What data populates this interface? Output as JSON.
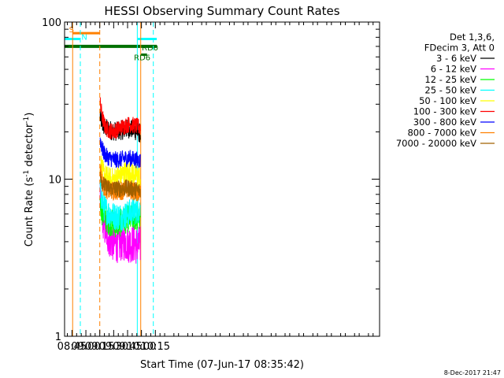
{
  "chart_data": {
    "type": "line",
    "title": "HESSI Observing Summary Count Rates",
    "xlabel": "Start Time (07-Jun-17 08:35:42)",
    "ylabel_main": "Count Rate (s",
    "ylabel_sup1": "-1",
    "ylabel_mid": " detector",
    "ylabel_sup2": "-1",
    "ylabel_end": ")",
    "x_range_min": [
      517,
      857
    ],
    "y_scale": "log",
    "ylim": [
      1,
      100
    ],
    "x_ticks": [
      {
        "min": 525,
        "label": "08:45"
      },
      {
        "min": 540,
        "label": "09:00"
      },
      {
        "min": 555,
        "label": "09:15"
      },
      {
        "min": 570,
        "label": "09:30"
      },
      {
        "min": 585,
        "label": "09:45"
      },
      {
        "min": 600,
        "label": "10:00"
      },
      {
        "min": 615,
        "label": "10:15"
      }
    ],
    "y_ticks": [
      {
        "value": 1,
        "label": "1"
      },
      {
        "value": 10,
        "label": "10"
      },
      {
        "value": 100,
        "label": "100"
      }
    ],
    "legend_header": [
      "Det 1,3,6,",
      "FDecim 3, Att 0"
    ],
    "data_start_min": 555.4,
    "data_end_min": 598.8,
    "series": [
      {
        "name": "3 - 6 keV",
        "color": "#000000",
        "values": [
          25,
          22.5,
          21.5,
          21,
          20.8,
          20.5,
          20.3,
          20.2,
          20.2,
          20.3,
          20.5,
          20.6,
          20.8,
          20.9,
          21,
          20.8,
          20.5,
          20.2,
          19.8,
          19.6
        ],
        "noise": 0.07
      },
      {
        "name": "6 - 12 keV",
        "color": "#ff00ff",
        "values": [
          7.5,
          6,
          5,
          4.6,
          4.3,
          4.1,
          4,
          3.9,
          3.9,
          3.9,
          4,
          4,
          4,
          3.9,
          3.9,
          3.9,
          3.9,
          3.8,
          3.8,
          3.8
        ],
        "noise": 0.14
      },
      {
        "name": "12 - 25 keV",
        "color": "#00ff00",
        "values": [
          7,
          6.2,
          5.8,
          5.6,
          5.4,
          5.3,
          5.2,
          5.2,
          5.2,
          5.2,
          5.3,
          5.4,
          5.5,
          5.6,
          5.6,
          5.7,
          5.7,
          5.7,
          5.7,
          5.6
        ],
        "noise": 0.1
      },
      {
        "name": "25 - 50 keV",
        "color": "#00ffff",
        "values": [
          8.5,
          7.2,
          6.6,
          6.3,
          6.1,
          6,
          5.9,
          5.8,
          5.8,
          5.8,
          5.8,
          5.8,
          5.9,
          6,
          6.1,
          6.2,
          6.3,
          6.3,
          6.4,
          6.4
        ],
        "noise": 0.1
      },
      {
        "name": "50 - 100 keV",
        "color": "#ffff00",
        "values": [
          13,
          11.2,
          10.5,
          10.2,
          10,
          9.9,
          9.9,
          10,
          10.2,
          10.4,
          10.6,
          10.8,
          10.9,
          11,
          11,
          10.9,
          10.8,
          10.6,
          10.4,
          10.2
        ],
        "noise": 0.09
      },
      {
        "name": "100 - 300 keV",
        "color": "#ff0000",
        "values": [
          30,
          25,
          22,
          21,
          20.5,
          20.3,
          20.2,
          20.3,
          20.6,
          21,
          21.4,
          21.7,
          22,
          22.2,
          22.3,
          22.2,
          22,
          21.8,
          21.6,
          21.2
        ],
        "noise": 0.06
      },
      {
        "name": "300 - 800 keV",
        "color": "#0000ff",
        "values": [
          18,
          15.5,
          14.5,
          14,
          13.7,
          13.5,
          13.4,
          13.3,
          13.3,
          13.3,
          13.4,
          13.5,
          13.6,
          13.6,
          13.6,
          13.5,
          13.4,
          13.3,
          13.2,
          13.1
        ],
        "noise": 0.06
      },
      {
        "name": "800 - 7000 keV",
        "color": "#ff8000",
        "values": [
          12,
          9.5,
          8.9,
          8.6,
          8.5,
          8.4,
          8.4,
          8.4,
          8.4,
          8.5,
          8.5,
          8.5,
          8.6,
          8.6,
          8.5,
          8.5,
          8.4,
          8.3,
          8.3,
          8.2
        ],
        "noise": 0.07
      },
      {
        "name": "7000 - 20000 keV",
        "color": "#a06000",
        "values": [
          11,
          9.6,
          9.1,
          8.9,
          8.8,
          8.7,
          8.7,
          8.7,
          8.7,
          8.7,
          8.7,
          8.7,
          8.8,
          8.8,
          8.7,
          8.7,
          8.6,
          8.5,
          8.5,
          8.4
        ],
        "noise": 0.06
      }
    ],
    "bars": [
      {
        "label": "S",
        "color": "#ff8000",
        "x0": 525.7,
        "x1": 555,
        "y": 85,
        "width": 3
      },
      {
        "label": "N",
        "color": "#00ffff",
        "x0": 517,
        "x1": 533.5,
        "y": 78,
        "width": 3
      },
      {
        "label": "",
        "color": "#00ffff",
        "x0": 596,
        "x1": 616.5,
        "y": 78,
        "width": 3
      },
      {
        "label": "",
        "color": "#007000",
        "x0": 517,
        "x1": 616.5,
        "y": 70,
        "width": 4
      },
      {
        "label": "RD0",
        "color": "#007000",
        "x0": 599.5,
        "x1": 606,
        "y": 62,
        "width": 3
      }
    ],
    "flag_labels": [
      {
        "text": "S",
        "color": "#ff8000",
        "x": 521.8,
        "y": 90
      },
      {
        "text": "N",
        "color": "#00ffff",
        "x": 535.2,
        "y": 81
      },
      {
        "text": "RD0",
        "color": "#007000",
        "x": 600.3,
        "y": 69
      },
      {
        "text": "RD6",
        "color": "#007000",
        "x": 591.8,
        "y": 60
      }
    ],
    "vlines": [
      {
        "x": 525.7,
        "color": "#ff8000",
        "dash": false
      },
      {
        "x": 534,
        "color": "#00ffff",
        "dash": true
      },
      {
        "x": 555,
        "color": "#ff8000",
        "dash": true
      },
      {
        "x": 595.5,
        "color": "#00ffff",
        "dash": false
      },
      {
        "x": 599.2,
        "color": "#ff8000",
        "dash": false
      },
      {
        "x": 612.8,
        "color": "#00ffff",
        "dash": true
      }
    ]
  },
  "footer": {
    "date_stamp": "8-Dec-2017 21:47"
  }
}
